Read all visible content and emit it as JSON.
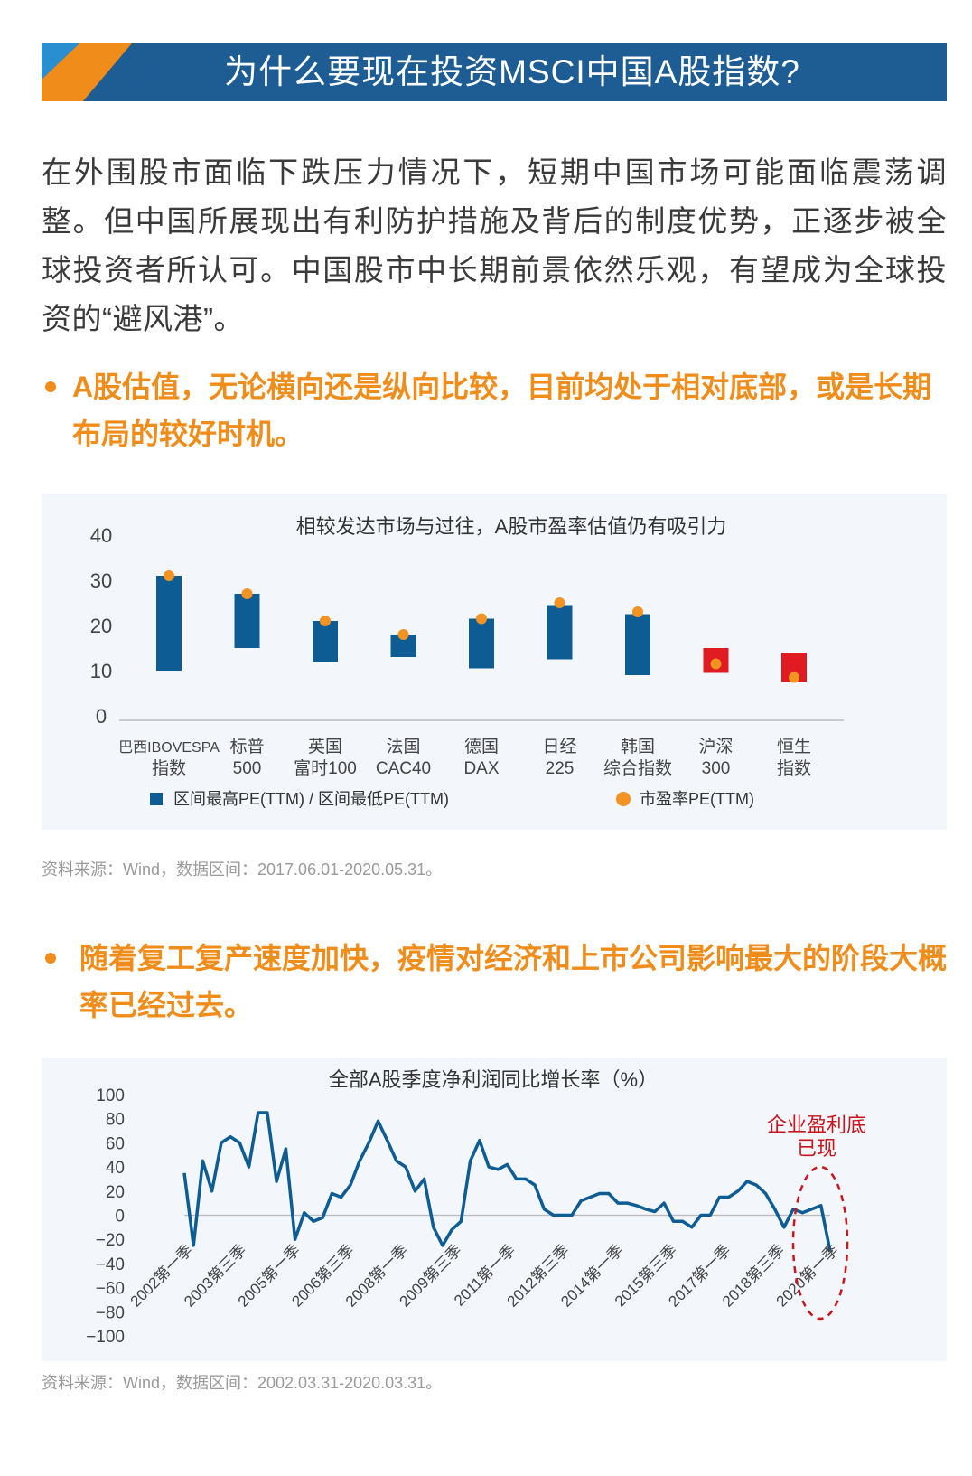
{
  "banner": {
    "title": "为什么要现在投资MSCI中国A股指数?"
  },
  "intro": "在外围股市面临下跌压力情况下，短期中国市场可能面临震荡调整。但中国所展现出有利防护措施及背后的制度优势，正逐步被全球投资者所认可。中国股市中长期前景依然乐观，有望成为全球投资的“避风港”。",
  "bullet1": "A股估值，无论横向还是纵向比较，目前均处于相对底部，或是长期布局的较好时机。",
  "bullet2": "随着复工复产速度加快，疫情对经济和上市公司影响最大的阶段大概率已经过去。",
  "source1": "资料来源：Wind，数据区间：2017.06.01-2020.05.31。",
  "source2": "资料来源：Wind，数据区间：2002.03.31-2020.03.31。",
  "colors": {
    "blue": "#0d5d94",
    "orange": "#f39323",
    "red": "#e01b22",
    "accent": "#f08c1a",
    "banner": "#1e5d94",
    "annotation": "#c8161d"
  },
  "chart_data": [
    {
      "type": "bar",
      "title": "相较发达市场与过往，A股市盈率估值仍有吸引力",
      "ylim": [
        0,
        40
      ],
      "yticks": [
        0,
        10,
        20,
        30,
        40
      ],
      "grid": false,
      "legend_position": "bottom",
      "categories": [
        [
          "巴西IBOVESPA",
          "指数"
        ],
        [
          "标普",
          "500"
        ],
        [
          "英国",
          "富时100"
        ],
        [
          "法国",
          "CAC40"
        ],
        [
          "德国",
          "DAX"
        ],
        [
          "日经",
          "225"
        ],
        [
          "韩国",
          "综合指数"
        ],
        [
          "沪深",
          "300"
        ],
        [
          "恒生",
          "指数"
        ]
      ],
      "series": [
        {
          "name": "区间最高PE(TTM) / 区间最低PE(TTM)",
          "high": [
            31,
            27,
            21,
            18,
            21.5,
            24.5,
            22.5,
            15,
            14
          ],
          "low": [
            10,
            15,
            12,
            13,
            10.5,
            12.5,
            9,
            9.5,
            7.5
          ]
        },
        {
          "name": "市盈率PE(TTM)",
          "values": [
            31,
            27,
            21,
            18,
            21.5,
            25,
            23,
            11.5,
            8.5
          ]
        }
      ],
      "highlight_indices": [
        7,
        8
      ]
    },
    {
      "type": "line",
      "title": "全部A股季度净利润同比增长率（%）",
      "ylim": [
        -100,
        100
      ],
      "yticks": [
        100,
        80,
        60,
        40,
        20,
        0,
        -20,
        -40,
        -60,
        -80,
        -100
      ],
      "xtick_labels": [
        "2002第一季",
        "2003第三季",
        "2005第一季",
        "2006第三季",
        "2008第一季",
        "2009第三季",
        "2011第一季",
        "2012第三季",
        "2014第一季",
        "2015第三季",
        "2017第一季",
        "2018第三季",
        "2020第一季"
      ],
      "annotation": {
        "text": [
          "企业盈利底",
          "已现"
        ]
      },
      "values": [
        35,
        -25,
        45,
        20,
        60,
        65,
        60,
        40,
        85,
        85,
        28,
        55,
        -20,
        2,
        -5,
        -2,
        18,
        15,
        25,
        45,
        60,
        78,
        62,
        45,
        40,
        20,
        30,
        -10,
        -25,
        -12,
        -5,
        45,
        62,
        40,
        38,
        42,
        30,
        30,
        25,
        5,
        0,
        0,
        0,
        12,
        15,
        18,
        18,
        10,
        10,
        8,
        5,
        3,
        10,
        -5,
        -5,
        -10,
        0,
        0,
        15,
        15,
        20,
        28,
        25,
        18,
        5,
        -10,
        5,
        2,
        5,
        8,
        -30
      ]
    }
  ]
}
